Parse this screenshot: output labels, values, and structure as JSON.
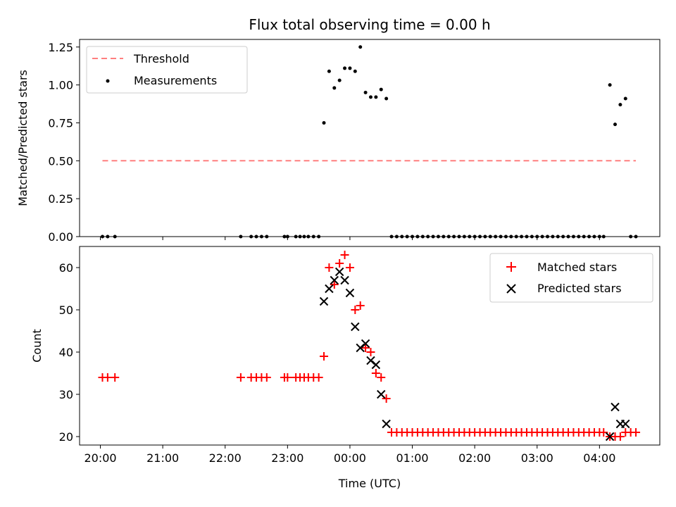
{
  "chart_data": [
    {
      "type": "scatter",
      "title": "Flux total observing time = 0.00 h",
      "xlabel": "",
      "ylabel": "Matched/Predicted stars",
      "xlim": [
        "19:40",
        "04:58"
      ],
      "ylim": [
        0.0,
        1.3
      ],
      "yticks": [
        "0.00",
        "0.25",
        "0.50",
        "0.75",
        "1.00",
        "1.25"
      ],
      "legend": {
        "position": "top-left",
        "entries": [
          "Threshold",
          "Measurements"
        ]
      },
      "series": [
        {
          "name": "Threshold",
          "kind": "dashed-line",
          "color": "#ff7f7f",
          "points": [
            [
              "20:02",
              0.5
            ],
            [
              "04:35",
              0.5
            ]
          ]
        },
        {
          "name": "Measurements",
          "kind": "dots",
          "color": "#000000",
          "points": [
            [
              "20:02",
              0
            ],
            [
              "20:07",
              0
            ],
            [
              "20:14",
              0
            ],
            [
              "22:15",
              0
            ],
            [
              "22:25",
              0
            ],
            [
              "22:30",
              0
            ],
            [
              "22:35",
              0
            ],
            [
              "22:40",
              0
            ],
            [
              "22:57",
              0
            ],
            [
              "23:00",
              0
            ],
            [
              "23:08",
              0
            ],
            [
              "23:12",
              0
            ],
            [
              "23:16",
              0
            ],
            [
              "23:20",
              0
            ],
            [
              "23:25",
              0
            ],
            [
              "23:30",
              0
            ],
            [
              "23:35",
              0.75
            ],
            [
              "23:40",
              1.09
            ],
            [
              "23:45",
              0.98
            ],
            [
              "23:50",
              1.03
            ],
            [
              "23:55",
              1.11
            ],
            [
              "00:00",
              1.11
            ],
            [
              "00:05",
              1.09
            ],
            [
              "00:10",
              1.25
            ],
            [
              "00:15",
              0.95
            ],
            [
              "00:20",
              0.92
            ],
            [
              "00:25",
              0.92
            ],
            [
              "00:30",
              0.97
            ],
            [
              "00:35",
              0.91
            ],
            [
              "00:40",
              0
            ],
            [
              "00:45",
              0
            ],
            [
              "00:50",
              0
            ],
            [
              "00:55",
              0
            ],
            [
              "01:00",
              0
            ],
            [
              "01:05",
              0
            ],
            [
              "01:10",
              0
            ],
            [
              "01:15",
              0
            ],
            [
              "01:20",
              0
            ],
            [
              "01:25",
              0
            ],
            [
              "01:30",
              0
            ],
            [
              "01:35",
              0
            ],
            [
              "01:40",
              0
            ],
            [
              "01:45",
              0
            ],
            [
              "01:50",
              0
            ],
            [
              "01:55",
              0
            ],
            [
              "02:00",
              0
            ],
            [
              "02:05",
              0
            ],
            [
              "02:10",
              0
            ],
            [
              "02:15",
              0
            ],
            [
              "02:20",
              0
            ],
            [
              "02:25",
              0
            ],
            [
              "02:30",
              0
            ],
            [
              "02:35",
              0
            ],
            [
              "02:40",
              0
            ],
            [
              "02:45",
              0
            ],
            [
              "02:50",
              0
            ],
            [
              "02:55",
              0
            ],
            [
              "03:00",
              0
            ],
            [
              "03:05",
              0
            ],
            [
              "03:10",
              0
            ],
            [
              "03:15",
              0
            ],
            [
              "03:20",
              0
            ],
            [
              "03:25",
              0
            ],
            [
              "03:30",
              0
            ],
            [
              "03:35",
              0
            ],
            [
              "03:40",
              0
            ],
            [
              "03:45",
              0
            ],
            [
              "03:50",
              0
            ],
            [
              "03:55",
              0
            ],
            [
              "04:00",
              0
            ],
            [
              "04:04",
              0
            ],
            [
              "04:10",
              1.0
            ],
            [
              "04:15",
              0.74
            ],
            [
              "04:20",
              0.87
            ],
            [
              "04:25",
              0.91
            ],
            [
              "04:30",
              0
            ],
            [
              "04:35",
              0
            ]
          ]
        }
      ]
    },
    {
      "type": "scatter",
      "title": "",
      "xlabel": "Time (UTC)",
      "ylabel": "Count",
      "xlim": [
        "19:40",
        "04:58"
      ],
      "ylim": [
        18,
        65
      ],
      "yticks": [
        "20",
        "30",
        "40",
        "50",
        "60"
      ],
      "xticks": [
        "20:00",
        "21:00",
        "22:00",
        "23:00",
        "00:00",
        "01:00",
        "02:00",
        "03:00",
        "04:00"
      ],
      "legend": {
        "position": "top-right",
        "entries": [
          "Matched stars",
          "Predicted stars"
        ]
      },
      "series": [
        {
          "name": "Matched stars",
          "kind": "plus",
          "color": "#ff0000",
          "points": [
            [
              "20:02",
              34
            ],
            [
              "20:07",
              34
            ],
            [
              "20:14",
              34
            ],
            [
              "22:15",
              34
            ],
            [
              "22:25",
              34
            ],
            [
              "22:30",
              34
            ],
            [
              "22:35",
              34
            ],
            [
              "22:40",
              34
            ],
            [
              "22:57",
              34
            ],
            [
              "23:00",
              34
            ],
            [
              "23:08",
              34
            ],
            [
              "23:12",
              34
            ],
            [
              "23:16",
              34
            ],
            [
              "23:20",
              34
            ],
            [
              "23:25",
              34
            ],
            [
              "23:30",
              34
            ],
            [
              "23:35",
              39
            ],
            [
              "23:40",
              60
            ],
            [
              "23:45",
              56
            ],
            [
              "23:50",
              61
            ],
            [
              "23:55",
              63
            ],
            [
              "00:00",
              60
            ],
            [
              "00:05",
              50
            ],
            [
              "00:10",
              51
            ],
            [
              "00:15",
              41
            ],
            [
              "00:20",
              40
            ],
            [
              "00:25",
              35
            ],
            [
              "00:30",
              34
            ],
            [
              "00:35",
              29
            ],
            [
              "00:40",
              21
            ],
            [
              "00:45",
              21
            ],
            [
              "00:50",
              21
            ],
            [
              "00:55",
              21
            ],
            [
              "01:00",
              21
            ],
            [
              "01:05",
              21
            ],
            [
              "01:10",
              21
            ],
            [
              "01:15",
              21
            ],
            [
              "01:20",
              21
            ],
            [
              "01:25",
              21
            ],
            [
              "01:30",
              21
            ],
            [
              "01:35",
              21
            ],
            [
              "01:40",
              21
            ],
            [
              "01:45",
              21
            ],
            [
              "01:50",
              21
            ],
            [
              "01:55",
              21
            ],
            [
              "02:00",
              21
            ],
            [
              "02:05",
              21
            ],
            [
              "02:10",
              21
            ],
            [
              "02:15",
              21
            ],
            [
              "02:20",
              21
            ],
            [
              "02:25",
              21
            ],
            [
              "02:30",
              21
            ],
            [
              "02:35",
              21
            ],
            [
              "02:40",
              21
            ],
            [
              "02:45",
              21
            ],
            [
              "02:50",
              21
            ],
            [
              "02:55",
              21
            ],
            [
              "03:00",
              21
            ],
            [
              "03:05",
              21
            ],
            [
              "03:10",
              21
            ],
            [
              "03:15",
              21
            ],
            [
              "03:20",
              21
            ],
            [
              "03:25",
              21
            ],
            [
              "03:30",
              21
            ],
            [
              "03:35",
              21
            ],
            [
              "03:40",
              21
            ],
            [
              "03:45",
              21
            ],
            [
              "03:50",
              21
            ],
            [
              "03:55",
              21
            ],
            [
              "04:00",
              21
            ],
            [
              "04:04",
              21
            ],
            [
              "04:10",
              20
            ],
            [
              "04:15",
              20
            ],
            [
              "04:20",
              20
            ],
            [
              "04:25",
              21
            ],
            [
              "04:30",
              21
            ],
            [
              "04:35",
              21
            ]
          ]
        },
        {
          "name": "Predicted stars",
          "kind": "x",
          "color": "#000000",
          "points": [
            [
              "23:35",
              52
            ],
            [
              "23:40",
              55
            ],
            [
              "23:45",
              57
            ],
            [
              "23:50",
              59
            ],
            [
              "23:55",
              57
            ],
            [
              "00:00",
              54
            ],
            [
              "00:05",
              46
            ],
            [
              "00:10",
              41
            ],
            [
              "00:15",
              42
            ],
            [
              "00:20",
              38
            ],
            [
              "00:25",
              37
            ],
            [
              "00:30",
              30
            ],
            [
              "00:35",
              23
            ],
            [
              "04:10",
              20
            ],
            [
              "04:15",
              27
            ],
            [
              "04:20",
              23
            ],
            [
              "04:25",
              23
            ]
          ]
        }
      ]
    }
  ]
}
